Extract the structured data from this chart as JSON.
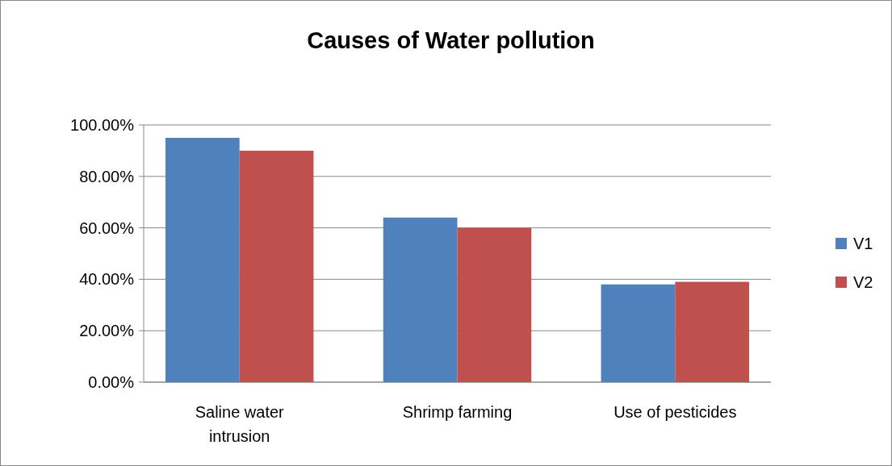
{
  "chart_data": {
    "type": "bar",
    "title": "Causes of Water pollution",
    "categories": [
      "Saline water intrusion",
      "Shrimp farming",
      "Use of pesticides"
    ],
    "series": [
      {
        "name": "V1",
        "color": "#4f81bd",
        "values": [
          95,
          64,
          38
        ]
      },
      {
        "name": "V2",
        "color": "#c0504d",
        "values": [
          90,
          60,
          39
        ]
      }
    ],
    "ylim": [
      0,
      100
    ],
    "yticks": [
      {
        "value": 0,
        "label": "0.00%"
      },
      {
        "value": 20,
        "label": "20.00%"
      },
      {
        "value": 40,
        "label": "40.00%"
      },
      {
        "value": 60,
        "label": "60.00%"
      },
      {
        "value": 80,
        "label": "80.00%"
      },
      {
        "value": 100,
        "label": "100.00%"
      }
    ],
    "grid": "y",
    "legend": "right"
  }
}
